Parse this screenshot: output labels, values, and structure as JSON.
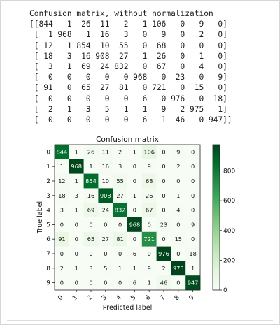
{
  "printout": {
    "heading": "Confusion matrix, without normalization",
    "lines": [
      "[[844   1  26  11   2   1 106   0   9   0]",
      " [  1 968   1  16   3   0   9   0   2   0]",
      " [ 12   1 854  10  55   0  68   0   0   0]",
      " [ 18   3  16 908  27   1  26   0   1   0]",
      " [  3   1  69  24 832   0  67   0   4   0]",
      " [  0   0   0   0   0 968   0  23   0   9]",
      " [ 91   0  65  27  81   0 721   0  15   0]",
      " [  0   0   0   0   0   6   0 976   0  18]",
      " [  2   1   3   5   1   1   9   2 975   1]",
      " [  0   0   0   0   0   6   1  46   0 947]]"
    ]
  },
  "chart_data": {
    "type": "heatmap",
    "title": "Confusion matrix",
    "xlabel": "Predicted label",
    "ylabel": "True label",
    "x_ticks": [
      "0",
      "1",
      "2",
      "3",
      "4",
      "5",
      "6",
      "7",
      "8",
      "9"
    ],
    "y_ticks": [
      "0",
      "1",
      "2",
      "3",
      "4",
      "5",
      "6",
      "7",
      "8",
      "9"
    ],
    "matrix": [
      [
        844,
        1,
        26,
        11,
        2,
        1,
        106,
        0,
        9,
        0
      ],
      [
        1,
        968,
        1,
        16,
        3,
        0,
        9,
        0,
        2,
        0
      ],
      [
        12,
        1,
        854,
        10,
        55,
        0,
        68,
        0,
        0,
        0
      ],
      [
        18,
        3,
        16,
        908,
        27,
        1,
        26,
        0,
        1,
        0
      ],
      [
        3,
        1,
        69,
        24,
        832,
        0,
        67,
        0,
        4,
        0
      ],
      [
        0,
        0,
        0,
        0,
        0,
        968,
        0,
        23,
        0,
        9
      ],
      [
        91,
        0,
        65,
        27,
        81,
        0,
        721,
        0,
        15,
        0
      ],
      [
        0,
        0,
        0,
        0,
        0,
        6,
        0,
        976,
        0,
        18
      ],
      [
        2,
        1,
        3,
        5,
        1,
        1,
        9,
        2,
        975,
        1
      ],
      [
        0,
        0,
        0,
        0,
        0,
        6,
        1,
        46,
        0,
        947
      ]
    ],
    "colormap": "Greens",
    "color_low": "#f7fcf5",
    "color_high": "#00441b",
    "colorbar_ticks": [
      "0",
      "200",
      "400",
      "600",
      "800"
    ],
    "colorbar_tick_values": [
      0,
      200,
      400,
      600,
      800
    ],
    "value_range": [
      0,
      976
    ],
    "grid": false
  }
}
